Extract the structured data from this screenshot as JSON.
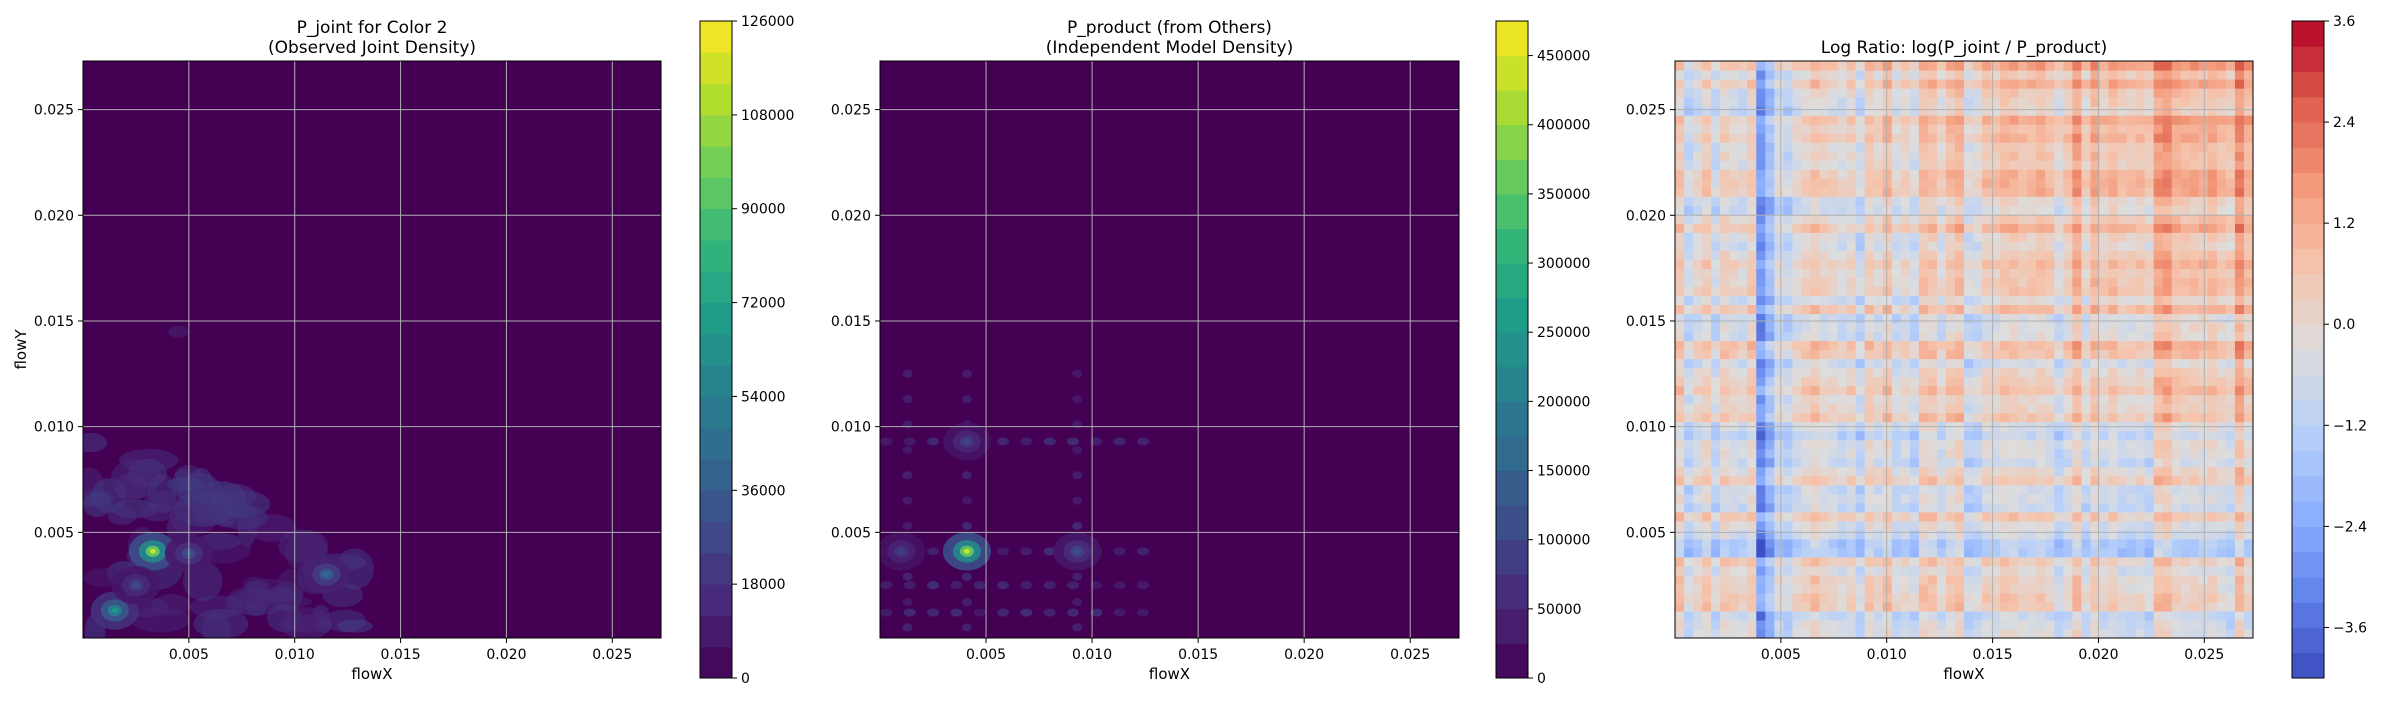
{
  "chart_data": [
    {
      "type": "heatmap",
      "title": "P_joint for Color 2",
      "subtitle": "(Observed Joint Density)",
      "xlabel": "flowX",
      "ylabel": "flowY",
      "xlim": [
        0.0,
        0.0273
      ],
      "ylim": [
        0.0,
        0.0273
      ],
      "xticks": [
        "0.005",
        "0.010",
        "0.015",
        "0.020",
        "0.025"
      ],
      "yticks": [
        "0.005",
        "0.010",
        "0.015",
        "0.020",
        "0.025"
      ],
      "grid": true,
      "colormap": "viridis",
      "colorbar": {
        "min": 0,
        "max": 126000,
        "ticks": [
          "0",
          "18000",
          "36000",
          "54000",
          "72000",
          "90000",
          "108000",
          "126000"
        ]
      },
      "hotspots": [
        {
          "x": 0.0033,
          "y": 0.0041,
          "value": 120000
        },
        {
          "x": 0.0015,
          "y": 0.0013,
          "value": 70000
        },
        {
          "x": 0.0115,
          "y": 0.003,
          "value": 45000
        },
        {
          "x": 0.005,
          "y": 0.004,
          "value": 35000
        },
        {
          "x": 0.0025,
          "y": 0.0025,
          "value": 30000
        }
      ]
    },
    {
      "type": "heatmap",
      "title": "P_product (from Others)",
      "subtitle": "(Independent Model Density)",
      "xlabel": "flowX",
      "ylabel": "",
      "xlim": [
        0.0,
        0.0273
      ],
      "ylim": [
        0.0,
        0.0273
      ],
      "xticks": [
        "0.005",
        "0.010",
        "0.015",
        "0.020",
        "0.025"
      ],
      "yticks": [
        "0.005",
        "0.010",
        "0.015",
        "0.020",
        "0.025"
      ],
      "grid": true,
      "colormap": "viridis",
      "colorbar": {
        "min": 0,
        "max": 475000,
        "ticks": [
          "0",
          "50000",
          "100000",
          "150000",
          "200000",
          "250000",
          "300000",
          "350000",
          "400000",
          "450000"
        ]
      },
      "hotspots": [
        {
          "x": 0.0041,
          "y": 0.0041,
          "value": 450000
        },
        {
          "x": 0.0093,
          "y": 0.0041,
          "value": 120000
        },
        {
          "x": 0.0041,
          "y": 0.0093,
          "value": 100000
        },
        {
          "x": 0.001,
          "y": 0.0041,
          "value": 90000
        }
      ]
    },
    {
      "type": "heatmap",
      "title": "Log Ratio: log(P_joint / P_product)",
      "subtitle": "",
      "xlabel": "flowX",
      "ylabel": "",
      "xlim": [
        0.0,
        0.0273
      ],
      "ylim": [
        0.0,
        0.0273
      ],
      "xticks": [
        "0.005",
        "0.010",
        "0.015",
        "0.020",
        "0.025"
      ],
      "yticks": [
        "0.005",
        "0.010",
        "0.015",
        "0.020",
        "0.025"
      ],
      "grid": true,
      "colormap": "coolwarm",
      "colorbar": {
        "min": -4.2,
        "max": 3.6,
        "ticks": [
          "3.6",
          "2.4",
          "1.2",
          "0.0",
          "−1.2",
          "−2.4",
          "−3.6"
        ],
        "tick_values": [
          3.6,
          2.4,
          1.2,
          0.0,
          -1.2,
          -2.4,
          -3.6
        ]
      }
    }
  ]
}
